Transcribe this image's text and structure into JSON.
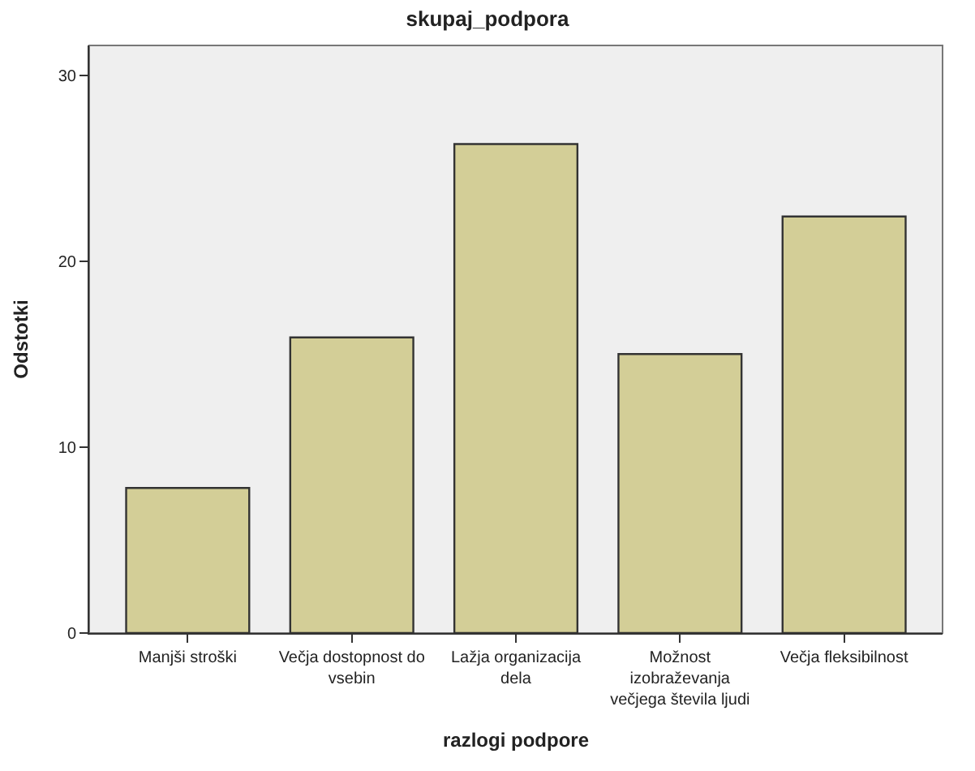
{
  "chart_data": {
    "type": "bar",
    "title": "skupaj_podpora",
    "xlabel": "razlogi podpore",
    "ylabel": "Odstotki",
    "categories": [
      "Manjši stroški",
      "Večja dostopnost do\nvsebin",
      "Lažja organizacija\ndela",
      "Možnost\nizobraževanja\nvečjega števila ljudi",
      "Večja fleksibilnost"
    ],
    "values": [
      7.8,
      15.9,
      26.3,
      15.0,
      22.4
    ],
    "color": "#d3ce97",
    "ylim": [
      0,
      31.6
    ],
    "yticks": [
      0,
      10,
      20,
      30
    ],
    "grid": false
  }
}
